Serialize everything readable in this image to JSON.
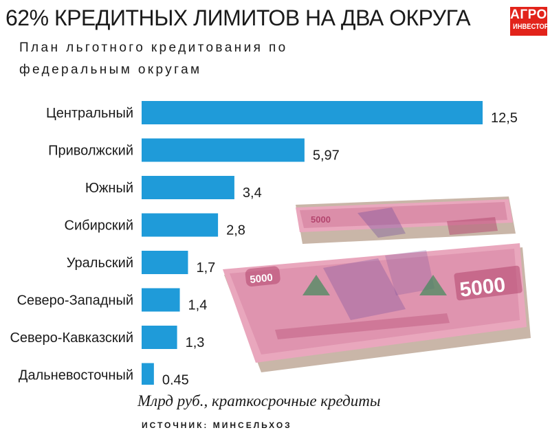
{
  "header": {
    "title": "62% КРЕДИТНЫХ ЛИМИТОВ НА ДВА ОКРУГА",
    "subtitle": "План льготного кредитования по федеральным округам"
  },
  "logo": {
    "line1": "АГРО",
    "line2": "ИНВЕСТОР"
  },
  "chart_data": {
    "type": "bar",
    "orientation": "horizontal",
    "categories": [
      "Центральный",
      "Приволжский",
      "Южный",
      "Сибирский",
      "Уральский",
      "Северо-Западный",
      "Северо-Кавказский",
      "Дальневосточный"
    ],
    "values": [
      12.5,
      5.97,
      3.4,
      2.8,
      1.7,
      1.4,
      1.3,
      0.45
    ],
    "value_labels": [
      "12,5",
      "5,97",
      "3,4",
      "2,8",
      "1,7",
      "1,4",
      "1,3",
      "0,45"
    ],
    "xlim": [
      0,
      12.5
    ],
    "grid": false,
    "legend": "none",
    "bar_color": "#1f9bd9"
  },
  "footnote": "Млрд руб., краткосрочные кредиты",
  "source": "ИСТОЧНИК: МИНСЕЛЬХОЗ",
  "illustration": {
    "note_text": "5000",
    "colors": {
      "note": "#e9a7bd",
      "note_dark": "#b3456e",
      "stack": "#c9b6a8",
      "ink": "#6e4a9a",
      "tree": "#3f8a5a"
    }
  }
}
